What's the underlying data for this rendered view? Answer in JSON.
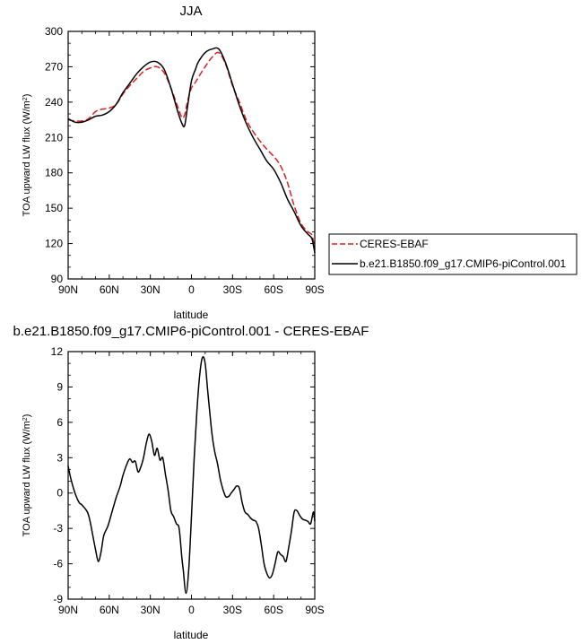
{
  "chart_data": [
    {
      "type": "line",
      "title": "JJA",
      "xlabel": "latitude",
      "ylabel_main": "TOA upward LW flux (W/m",
      "ylabel_sup": "2",
      "ylabel_close": ")",
      "xlim": [
        90,
        -90
      ],
      "ylim": [
        90,
        300
      ],
      "xticks": [
        90,
        60,
        30,
        0,
        -30,
        -60,
        -90
      ],
      "xtick_labels": [
        "90N",
        "60N",
        "30N",
        "0",
        "30S",
        "60S",
        "90S"
      ],
      "yticks": [
        90,
        120,
        150,
        180,
        210,
        240,
        270,
        300
      ],
      "ytick_labels": [
        "90",
        "120",
        "150",
        "180",
        "210",
        "240",
        "270",
        "300"
      ],
      "grid": false,
      "legend_position": "right",
      "series": [
        {
          "name": "CERES-EBAF",
          "color": "#e02020",
          "dash": "dashed",
          "x": [
            90,
            85,
            80,
            75,
            70,
            65,
            60,
            55,
            50,
            45,
            40,
            35,
            30,
            25,
            20,
            15,
            10,
            7,
            5,
            3,
            0,
            -3,
            -5,
            -10,
            -15,
            -20,
            -25,
            -30,
            -35,
            -40,
            -45,
            -50,
            -55,
            -60,
            -65,
            -70,
            -75,
            -80,
            -85,
            -88,
            -90
          ],
          "y": [
            225,
            224,
            224,
            226,
            232,
            234,
            235,
            238,
            247,
            254,
            260,
            266,
            269,
            270,
            265,
            252,
            236,
            227,
            229,
            240,
            252,
            257,
            261,
            270,
            278,
            282,
            272,
            254,
            240,
            225,
            215,
            207,
            200,
            194,
            186,
            172,
            152,
            137,
            130,
            127,
            115
          ]
        },
        {
          "name": "b.e21.B1850.f09_g17.CMIP6-piControl.001",
          "color": "#000000",
          "dash": "solid",
          "x": [
            90,
            85,
            80,
            75,
            70,
            65,
            60,
            55,
            50,
            45,
            40,
            35,
            30,
            25,
            20,
            15,
            10,
            7,
            5,
            3,
            0,
            -3,
            -5,
            -10,
            -15,
            -20,
            -25,
            -30,
            -35,
            -40,
            -45,
            -50,
            -55,
            -60,
            -65,
            -70,
            -75,
            -80,
            -85,
            -88,
            -90
          ],
          "y": [
            226,
            223,
            223,
            225,
            228,
            229,
            232,
            238,
            248,
            256,
            264,
            270,
            274,
            274,
            268,
            252,
            232,
            222,
            220,
            235,
            258,
            268,
            274,
            282,
            285,
            285,
            273,
            255,
            237,
            222,
            210,
            200,
            190,
            183,
            172,
            158,
            147,
            135,
            128,
            124,
            112
          ]
        }
      ]
    },
    {
      "type": "line",
      "title": "b.e21.B1850.f09_g17.CMIP6-piControl.001 - CERES-EBAF",
      "xlabel": "latitude",
      "ylabel_main": "TOA upward LW flux (W/m",
      "ylabel_sup": "2",
      "ylabel_close": ")",
      "xlim": [
        90,
        -90
      ],
      "ylim": [
        -9,
        12
      ],
      "xticks": [
        90,
        60,
        30,
        0,
        -30,
        -60,
        -90
      ],
      "xtick_labels": [
        "90N",
        "60N",
        "30N",
        "0",
        "30S",
        "60S",
        "90S"
      ],
      "yticks": [
        -9,
        -6,
        -3,
        0,
        3,
        6,
        9,
        12
      ],
      "ytick_labels": [
        "-9",
        "-6",
        "-3",
        "0",
        "3",
        "6",
        "9",
        "12"
      ],
      "grid": false,
      "series": [
        {
          "color": "#000000",
          "dash": "solid",
          "x": [
            90,
            88,
            85,
            82,
            80,
            76,
            74,
            72,
            70,
            68,
            66,
            64,
            61,
            58,
            55,
            52,
            50,
            47,
            45,
            43,
            41,
            39,
            37,
            35,
            33,
            31,
            29,
            27,
            25,
            23,
            21,
            19,
            17,
            15,
            13,
            11,
            9,
            7,
            6,
            4,
            2,
            0,
            -2,
            -4,
            -6,
            -8,
            -10,
            -12,
            -15,
            -17,
            -19,
            -21,
            -23,
            -25,
            -27,
            -29,
            -31,
            -33,
            -35,
            -37,
            -39,
            -41,
            -43,
            -45,
            -47,
            -49,
            -51,
            -53,
            -55,
            -57,
            -59,
            -61,
            -63,
            -65,
            -67,
            -69,
            -71,
            -73,
            -75,
            -77,
            -79,
            -81,
            -83,
            -85,
            -87,
            -89,
            -90
          ],
          "y": [
            2.3,
            1.2,
            0,
            -0.8,
            -1.0,
            -1.6,
            -2.4,
            -3.6,
            -4.8,
            -5.8,
            -5.0,
            -3.6,
            -2.8,
            -1.6,
            -0.4,
            0.6,
            1.5,
            2.5,
            2.9,
            2.6,
            2.7,
            1.8,
            2.2,
            3.0,
            4.2,
            5.0,
            4.4,
            3.2,
            3.8,
            2.8,
            3.0,
            1.6,
            0.2,
            -1.5,
            -2.0,
            -2.6,
            -3.0,
            -5.5,
            -6.5,
            -8.5,
            -6.5,
            -2.0,
            3.0,
            7.0,
            10.0,
            11.5,
            11.0,
            8.5,
            5.0,
            3.5,
            2.5,
            1.2,
            0.3,
            -0.3,
            -0.3,
            0.0,
            0.3,
            0.6,
            0.4,
            -0.8,
            -1.6,
            -1.8,
            -2.1,
            -2.3,
            -2.4,
            -3.0,
            -4.4,
            -6.0,
            -6.8,
            -7.2,
            -6.9,
            -6.0,
            -5.0,
            -5.2,
            -5.4,
            -5.8,
            -4.6,
            -3.2,
            -1.6,
            -1.5,
            -1.9,
            -2.2,
            -2.3,
            -2.4,
            -2.6,
            -1.6,
            -2.4
          ]
        }
      ]
    }
  ]
}
